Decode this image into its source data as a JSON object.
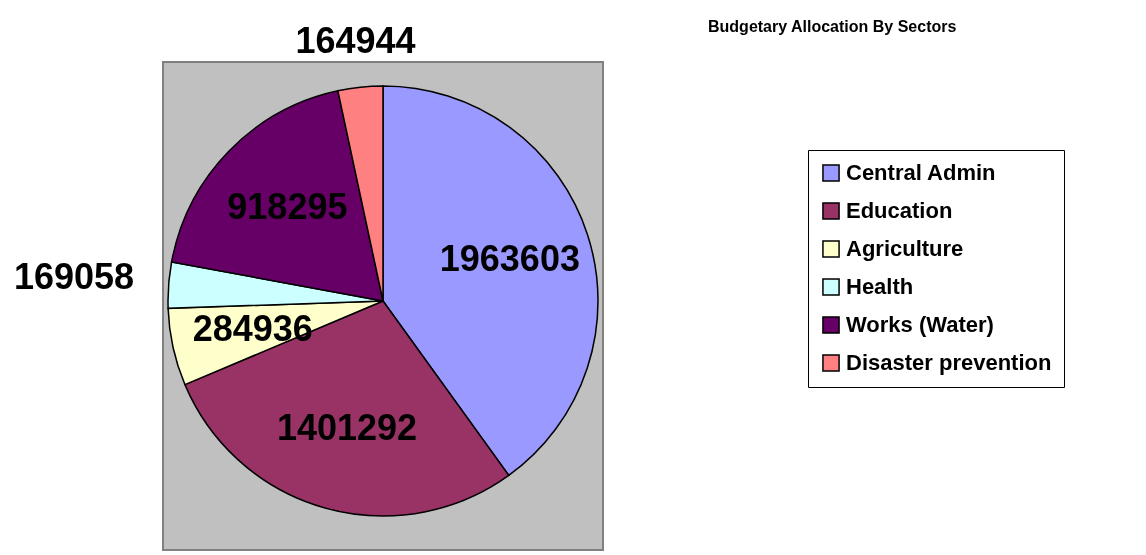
{
  "chart_data": {
    "type": "pie",
    "title": "Budgetary Allocation By Sectors",
    "categories": [
      "Central Admin",
      "Education",
      "Agriculture",
      "Health",
      "Works (Water)",
      "Disaster prevention"
    ],
    "values": [
      1963603,
      1401292,
      284936,
      169058,
      918295,
      164944
    ],
    "colors": [
      "#9999ff",
      "#993366",
      "#ffffcc",
      "#ccffff",
      "#660066",
      "#ff8080"
    ],
    "data_labels": true,
    "legend": "right"
  }
}
